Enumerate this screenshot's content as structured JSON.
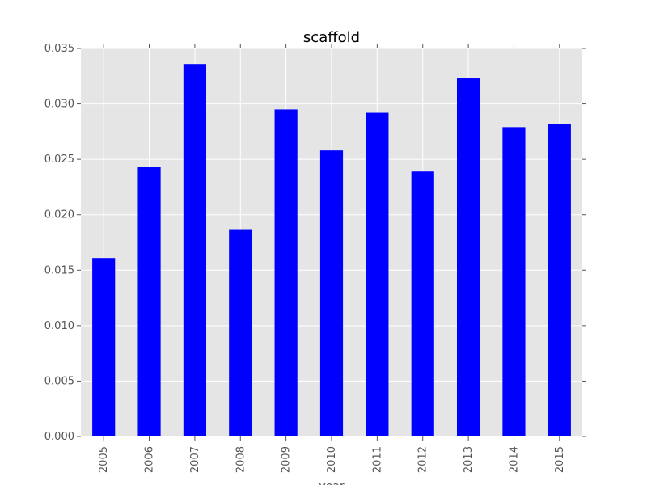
{
  "chart_data": {
    "type": "bar",
    "title": "scaffold",
    "xlabel": "year",
    "ylabel": "",
    "categories": [
      "2005",
      "2006",
      "2007",
      "2008",
      "2009",
      "2010",
      "2011",
      "2012",
      "2013",
      "2014",
      "2015"
    ],
    "values": [
      0.0161,
      0.0243,
      0.0336,
      0.0187,
      0.0295,
      0.0258,
      0.0292,
      0.0239,
      0.0323,
      0.0279,
      0.0282
    ],
    "ylim": [
      0,
      0.035
    ],
    "yticks": [
      "0.000",
      "0.005",
      "0.010",
      "0.015",
      "0.020",
      "0.025",
      "0.030",
      "0.035"
    ],
    "grid": true,
    "legend": "none",
    "colors": {
      "bar": "#0000ff",
      "plot_background": "#e5e5e5",
      "grid": "#ffffff"
    }
  }
}
